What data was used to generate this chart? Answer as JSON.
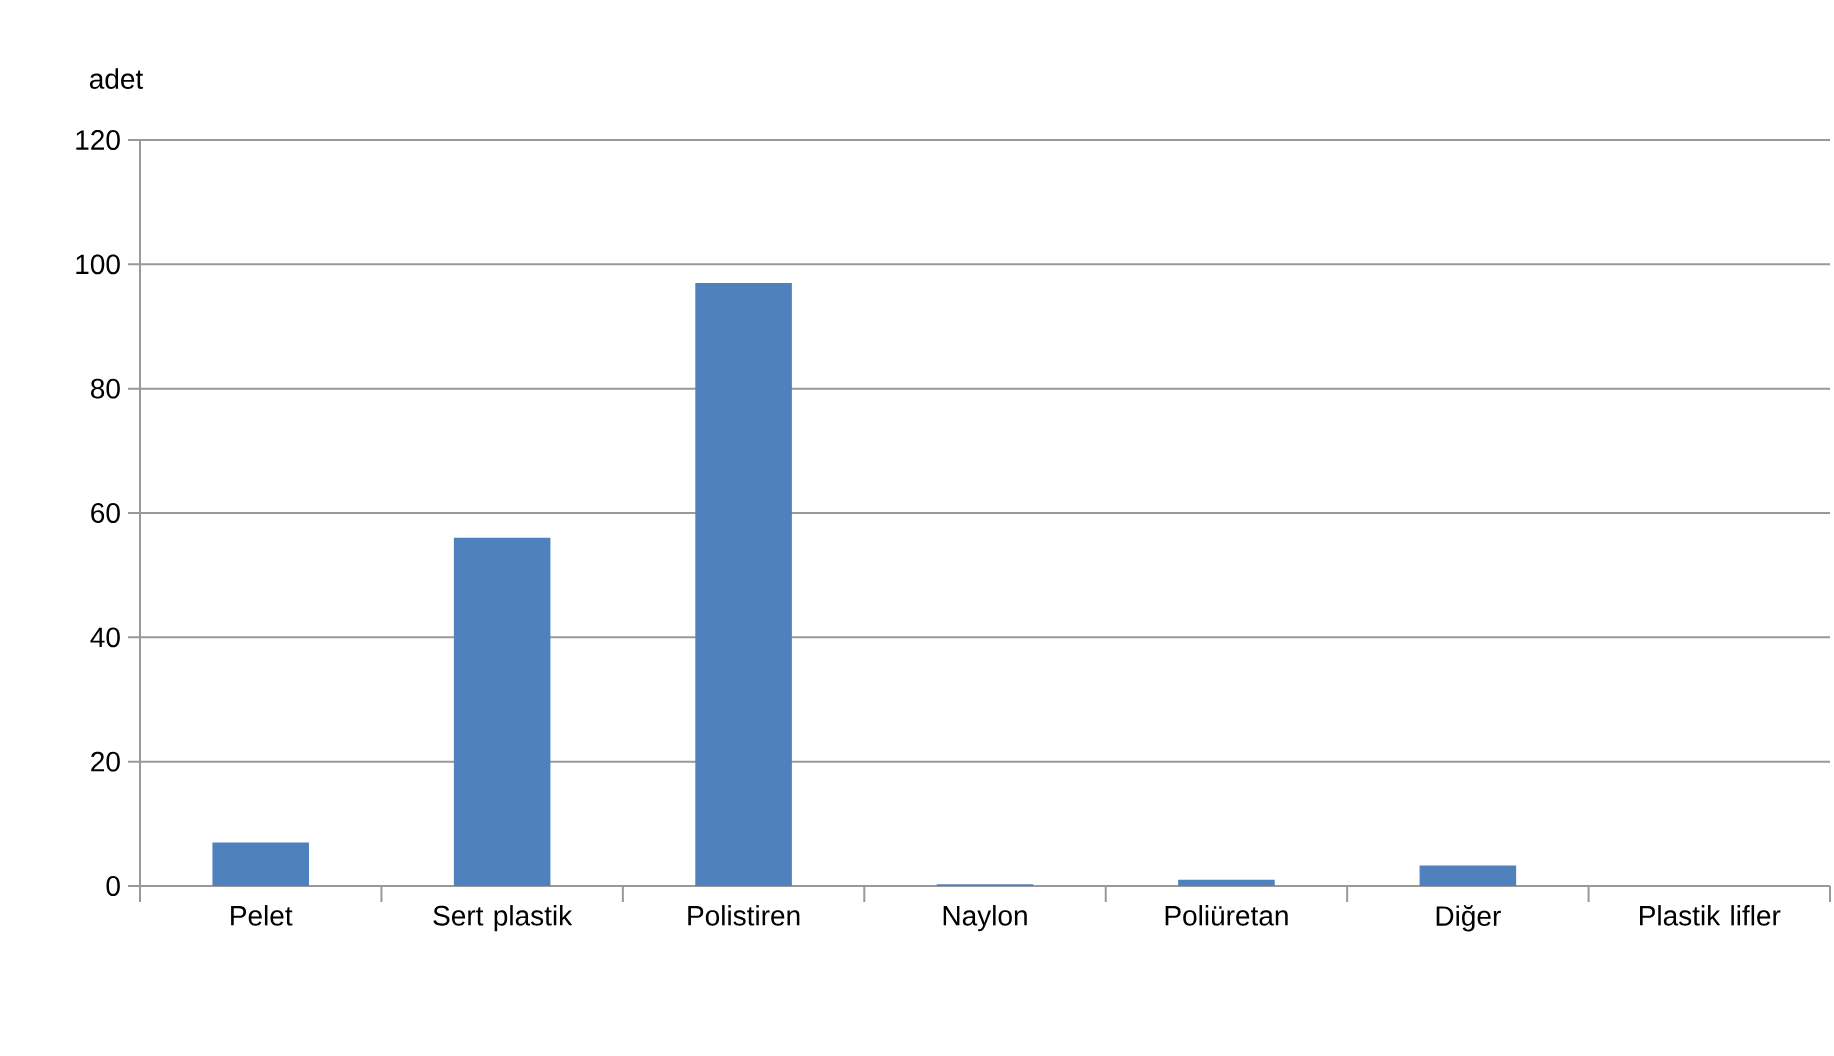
{
  "chart_data": {
    "type": "bar",
    "ylabel": "adet",
    "categories": [
      "Pelet",
      "Sert plastik",
      "Polistiren",
      "Naylon",
      "Poliüretan",
      "Diğer",
      "Plastik lifler"
    ],
    "values": [
      7,
      56,
      97,
      0.3,
      1,
      3.3,
      0
    ],
    "color": "#4f81bd",
    "ylim": [
      0,
      120
    ],
    "yticks": [
      0,
      20,
      40,
      60,
      80,
      100,
      120
    ],
    "grid": "y"
  }
}
